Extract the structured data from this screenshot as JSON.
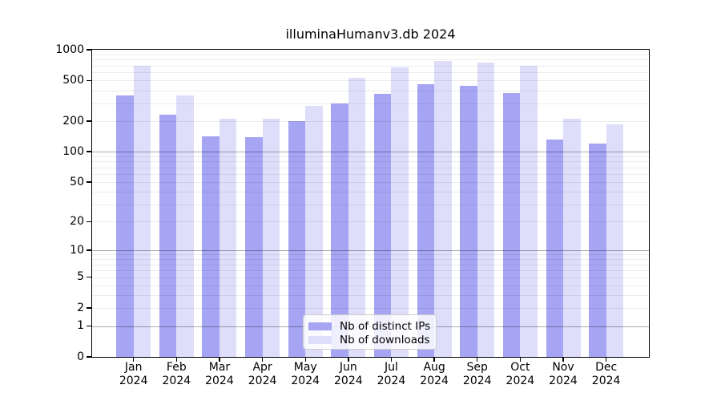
{
  "title": "illuminaHumanv3.db 2024",
  "chart_data": {
    "type": "bar",
    "title": "illuminaHumanv3.db 2024",
    "yscale": "log1p",
    "ylim": [
      0,
      1000
    ],
    "grid": "horizontal",
    "yticks": [
      0,
      1,
      2,
      5,
      10,
      20,
      50,
      100,
      200,
      500,
      1000
    ],
    "ytick_labels": [
      "0",
      "1",
      "2",
      "5",
      "10",
      "20",
      "50",
      "100",
      "200",
      "500",
      "1000"
    ],
    "categories": [
      "Jan",
      "Feb",
      "Mar",
      "Apr",
      "May",
      "Jun",
      "Jul",
      "Aug",
      "Sep",
      "Oct",
      "Nov",
      "Dec"
    ],
    "year": "2024",
    "series": [
      {
        "name": "Nb of distinct IPs",
        "color": "#a5a5f4",
        "values": [
          360,
          230,
          142,
          139,
          199,
          300,
          370,
          462,
          445,
          378,
          132,
          120
        ]
      },
      {
        "name": "Nb of downloads",
        "color": "#dedefa",
        "values": [
          700,
          360,
          210,
          210,
          280,
          530,
          670,
          770,
          745,
          700,
          210,
          185
        ]
      }
    ],
    "legend_position": "bottom-center"
  }
}
